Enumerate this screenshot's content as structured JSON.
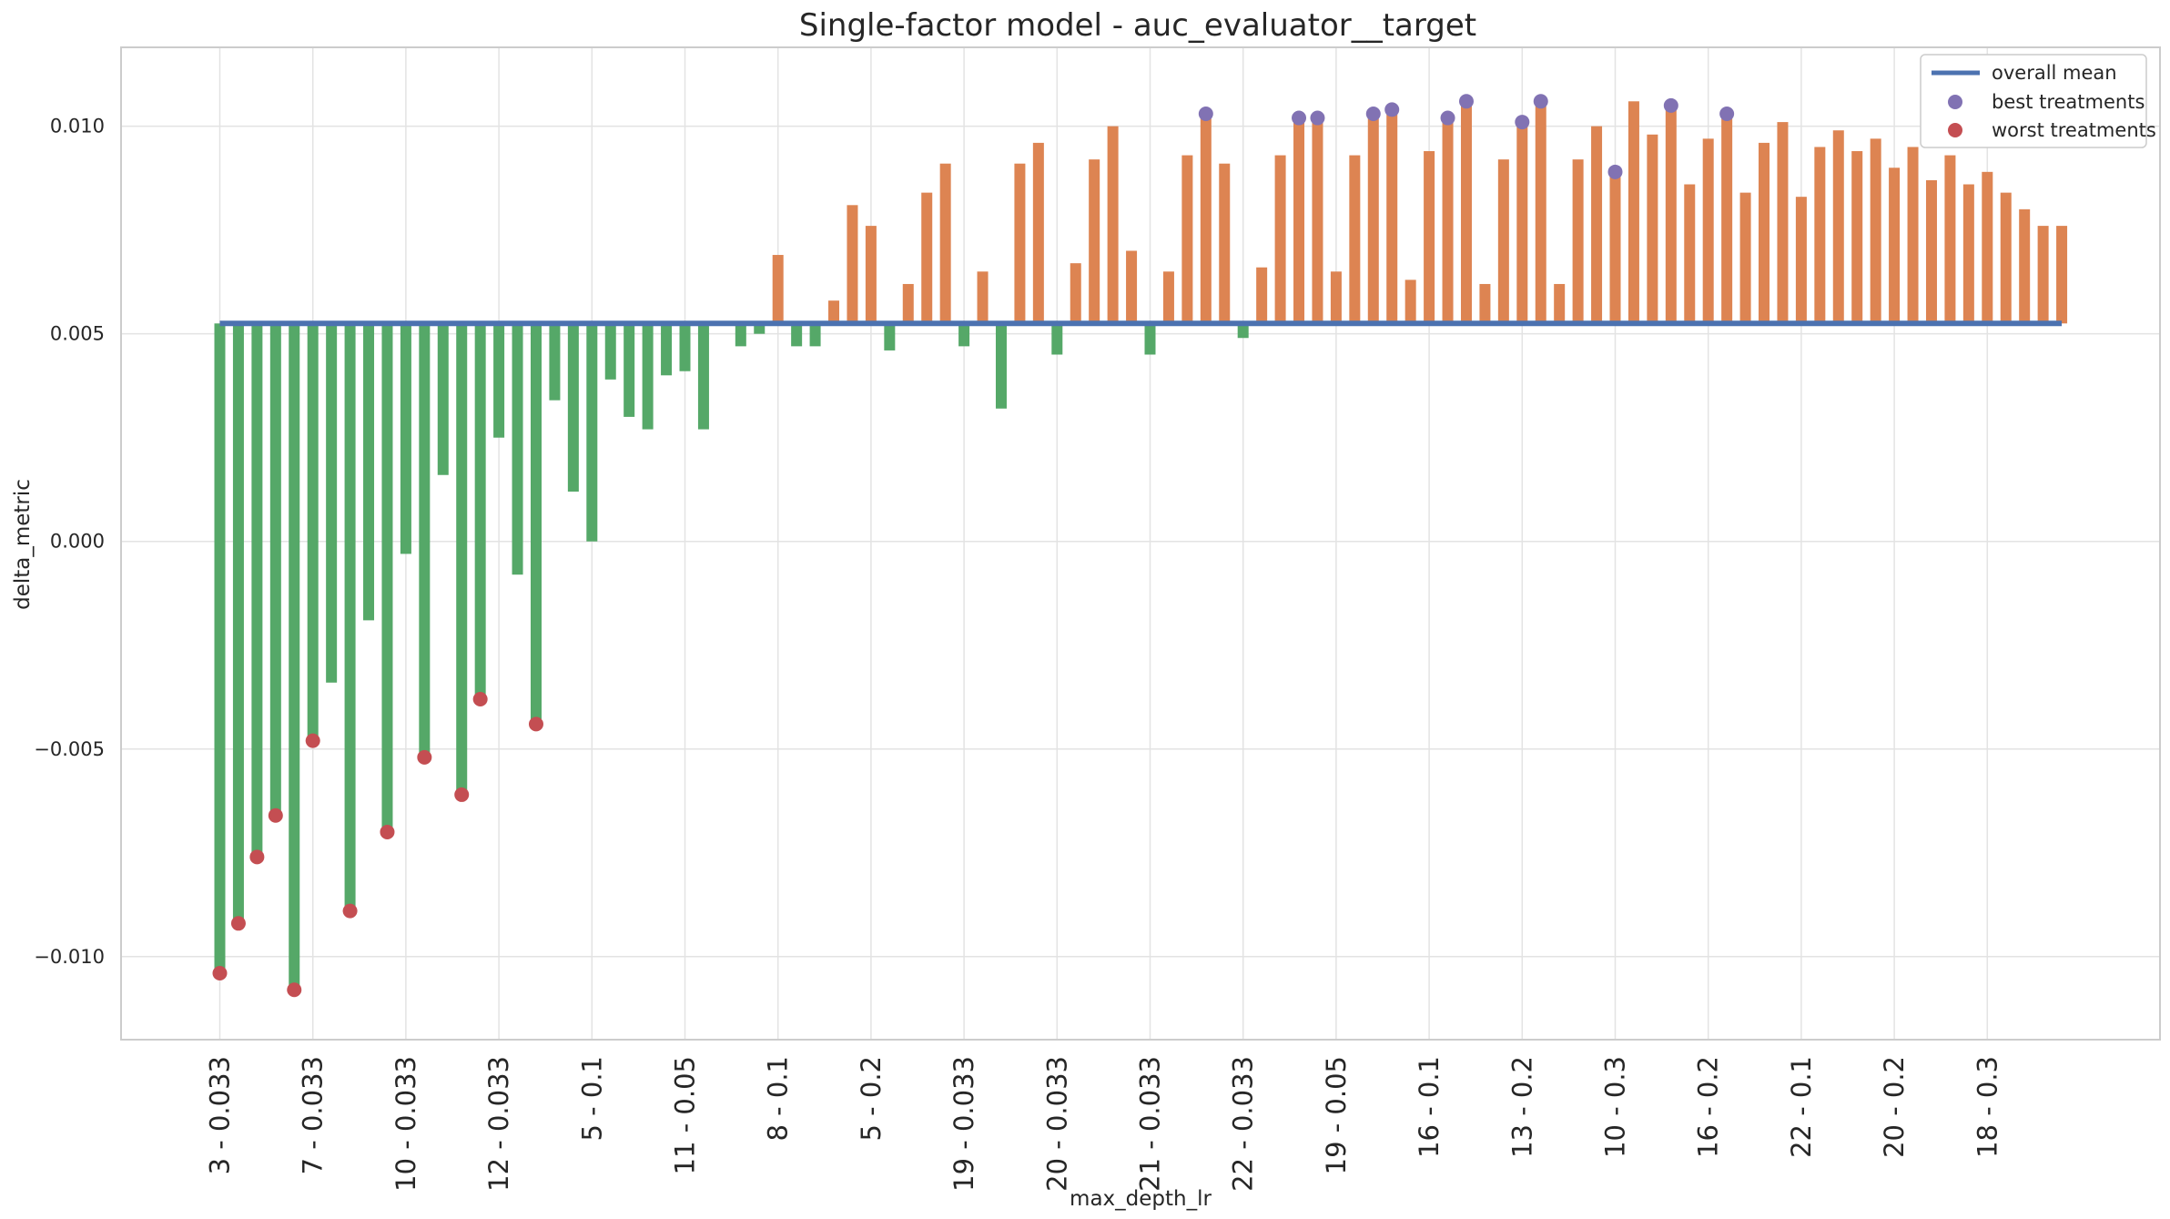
{
  "chart_data": {
    "type": "bar",
    "title": "Single-factor model - auc_evaluator__target",
    "xlabel": "max_depth_lr",
    "ylabel": "delta_metric",
    "ylim": [
      -0.012,
      0.0119
    ],
    "yticks": [
      -0.01,
      -0.005,
      0.0,
      0.005,
      0.01
    ],
    "ytick_labels": [
      "−0.010",
      "−0.005",
      "0.000",
      "0.005",
      "0.010"
    ],
    "xtick_labels": [
      "3 - 0.033",
      "7 - 0.033",
      "10 - 0.033",
      "12 - 0.033",
      "5 - 0.1",
      "11 - 0.05",
      "8 - 0.1",
      "5 - 0.2",
      "19 - 0.033",
      "20 - 0.033",
      "21 - 0.033",
      "22 - 0.033",
      "19 - 0.05",
      "16 - 0.1",
      "13 - 0.2",
      "10 - 0.3",
      "16 - 0.2",
      "22 - 0.1",
      "20 - 0.2",
      "18 - 0.3"
    ],
    "xtick_every": 5,
    "overall_mean": 0.00525,
    "values": [
      -0.0104,
      -0.0092,
      -0.0076,
      -0.0066,
      -0.0108,
      -0.0048,
      -0.0034,
      -0.0089,
      -0.0019,
      -0.007,
      -0.0003,
      -0.0052,
      0.0016,
      -0.0061,
      -0.0038,
      0.0025,
      -0.0008,
      -0.0044,
      0.0034,
      0.0012,
      0.0,
      0.0039,
      0.003,
      0.0027,
      0.004,
      0.0041,
      0.0027,
      null,
      0.0047,
      0.005,
      0.0069,
      0.0047,
      0.0047,
      0.0058,
      0.0081,
      0.0076,
      0.0046,
      0.0062,
      0.0084,
      0.0091,
      0.0047,
      0.0065,
      0.0032,
      0.0091,
      0.0096,
      0.0045,
      0.0067,
      0.0092,
      0.01,
      0.007,
      0.0045,
      0.0065,
      0.0093,
      0.0103,
      0.0091,
      0.0049,
      0.0066,
      0.0093,
      0.0102,
      0.0102,
      0.0065,
      0.0093,
      0.0103,
      0.0104,
      0.0063,
      0.0094,
      0.0102,
      0.0106,
      0.0062,
      0.0092,
      0.0101,
      0.0106,
      0.0062,
      0.0092,
      0.01,
      0.0089,
      0.0106,
      0.0098,
      0.0105,
      0.0086,
      0.0097,
      0.0103,
      0.0084,
      0.0096,
      0.0101,
      0.0083,
      0.0095,
      0.0099,
      0.0094,
      0.0097,
      0.009,
      0.0095,
      0.0087,
      0.0093,
      0.0086,
      0.0089,
      0.0084,
      0.008,
      0.0076,
      0.0076
    ],
    "best_treatments": [
      53,
      58,
      59,
      62,
      63,
      66,
      67,
      70,
      71,
      75,
      78,
      81
    ],
    "worst_treatments": [
      0,
      1,
      2,
      3,
      4,
      5,
      7,
      9,
      11,
      13,
      14,
      17
    ],
    "colors": {
      "above": "#dd8452",
      "below": "#55a868",
      "mean_line": "#4c72b0",
      "best": "#8172b3",
      "worst": "#c44e52",
      "grid": "#e3e3e3",
      "frame": "#cccccc"
    },
    "legend": {
      "position": "top-right",
      "entries": [
        "overall mean",
        "best treatments",
        "worst treatments"
      ]
    },
    "grid": true
  }
}
